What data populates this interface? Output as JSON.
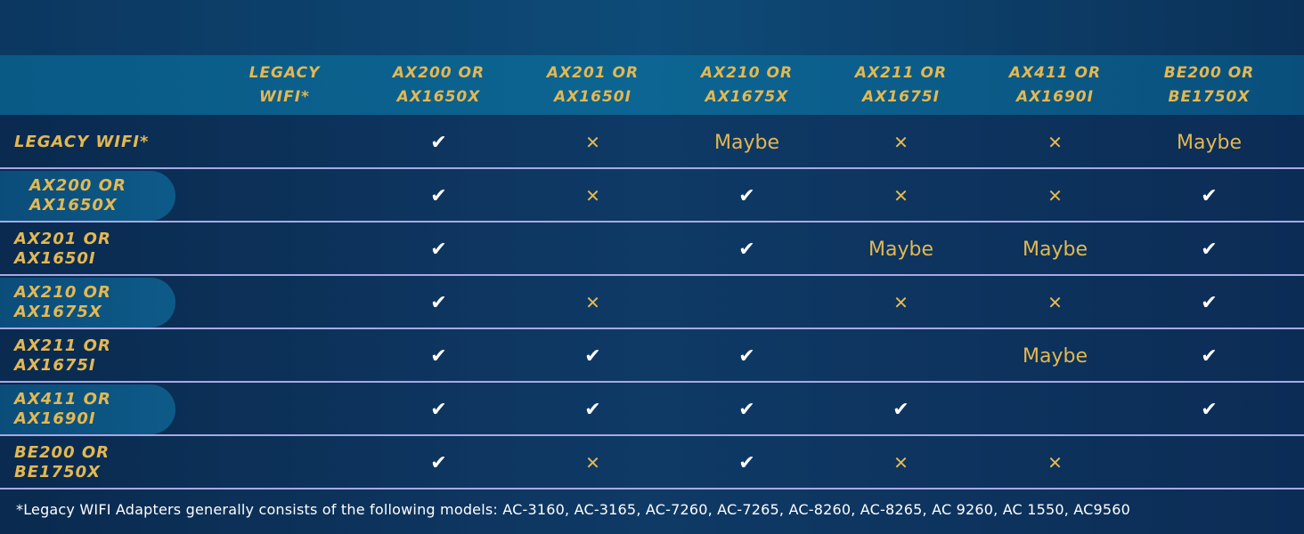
{
  "columns": [
    "LEGACY\nWIFI*",
    "AX200 OR\nAX1650X",
    "AX201 OR\nAX1650I",
    "AX210 OR\nAX1675X",
    "AX211 OR\nAX1675I",
    "AX411 OR\nAX1690I",
    "BE200 OR\nBE1750X"
  ],
  "rows": [
    {
      "label": "LEGACY WIFI*",
      "cells": [
        "",
        "yes",
        "no",
        "Maybe",
        "no",
        "no",
        "Maybe"
      ]
    },
    {
      "label": "AX200 OR\nAX1650X",
      "cells": [
        "",
        "yes",
        "no",
        "yes",
        "no",
        "no",
        "yes"
      ]
    },
    {
      "label": "AX201 OR\nAX1650I",
      "cells": [
        "",
        "yes",
        "",
        "yes",
        "Maybe",
        "Maybe",
        "yes"
      ]
    },
    {
      "label": "AX210 OR\nAX1675X",
      "cells": [
        "",
        "yes",
        "no",
        "",
        "no",
        "no",
        "yes"
      ]
    },
    {
      "label": "AX211 OR\nAX1675I",
      "cells": [
        "",
        "yes",
        "yes",
        "yes",
        "",
        "Maybe",
        "yes"
      ]
    },
    {
      "label": "AX411 OR\nAX1690I",
      "cells": [
        "",
        "yes",
        "yes",
        "yes",
        "yes",
        "",
        "yes"
      ]
    },
    {
      "label": "BE200 OR\nBE1750X",
      "cells": [
        "",
        "yes",
        "no",
        "yes",
        "no",
        "no",
        ""
      ]
    }
  ],
  "icons": {
    "yes": "check-icon",
    "no": "cross-icon"
  },
  "colors": {
    "accent": "#e3b852",
    "background": "#0f3a66",
    "header": "#0c6592",
    "divider": "#a9a8e6"
  },
  "footnote": "*Legacy WIFI Adapters generally consists of the following models: AC-3160, AC-3165, AC-7260, AC-7265, AC-8260, AC-8265, AC 9260, AC 1550, AC9560"
}
